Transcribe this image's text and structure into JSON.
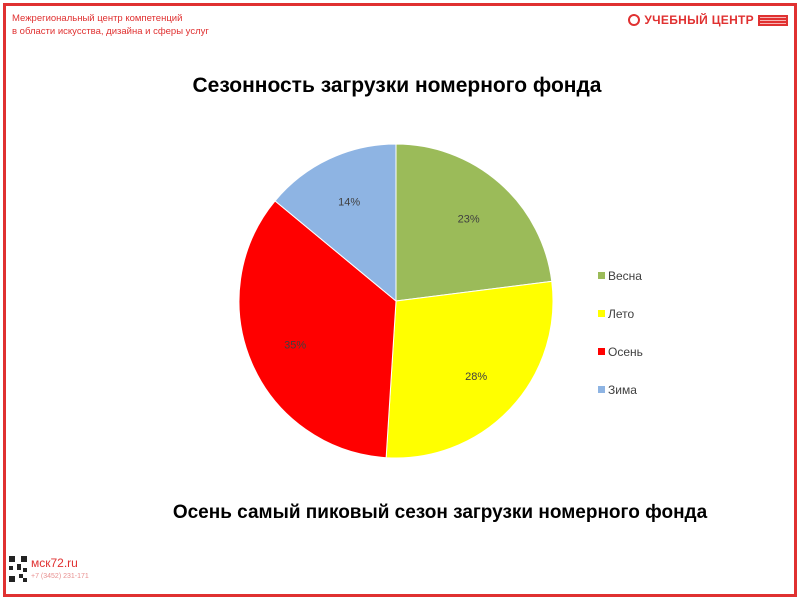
{
  "header": {
    "org_line1": "Межрегиональный центр компетенций",
    "org_line2": "в области искусства, дизайна и сферы услуг",
    "logo_text": "УЧЕБНЫЙ ЦЕНТР"
  },
  "chart_data": {
    "type": "pie",
    "title": "Сезонность загрузки номерного фонда",
    "categories": [
      "Весна",
      "Лето",
      "Осень",
      "Зима"
    ],
    "values": [
      23,
      28,
      35,
      14
    ],
    "labels": [
      "23%",
      "28%",
      "35%",
      "14%"
    ],
    "colors": [
      "#9bbb59",
      "#ffff00",
      "#ff0000",
      "#8eb4e3"
    ],
    "legend_position": "right"
  },
  "caption": "Осень самый пиковый сезон загрузки номерного фонда",
  "footer": {
    "site": "мск72.ru",
    "phone": "+7 (3452) 231-171"
  }
}
